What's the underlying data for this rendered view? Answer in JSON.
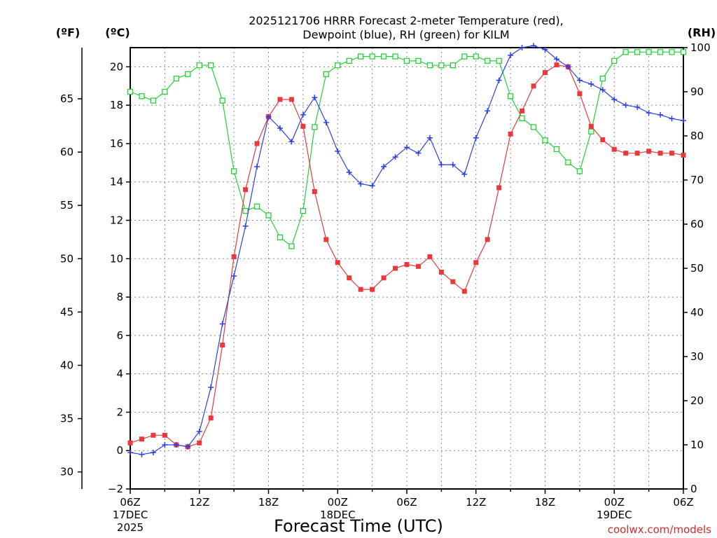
{
  "chart_data": {
    "type": "line",
    "title": "2025121706 HRRR Forecast 2-meter Temperature (red),",
    "subtitle": "Dewpoint (blue), RH (green) for KILM",
    "xlabel": "Forecast Time (UTC)",
    "units": {
      "left_f": "(ºF)",
      "left_c": "(ºC)",
      "right": "(RH)"
    },
    "watermark": "coolwx.com/models",
    "x_ticks": [
      {
        "hour": 0,
        "lines": [
          "06Z",
          "17DEC",
          "2025"
        ]
      },
      {
        "hour": 6,
        "lines": [
          "12Z"
        ]
      },
      {
        "hour": 12,
        "lines": [
          "18Z"
        ]
      },
      {
        "hour": 18,
        "lines": [
          "00Z",
          "18DEC"
        ]
      },
      {
        "hour": 24,
        "lines": [
          "06Z"
        ]
      },
      {
        "hour": 30,
        "lines": [
          "12Z"
        ]
      },
      {
        "hour": 36,
        "lines": [
          "18Z"
        ]
      },
      {
        "hour": 42,
        "lines": [
          "00Z",
          "19DEC"
        ]
      },
      {
        "hour": 48,
        "lines": [
          "06Z"
        ]
      }
    ],
    "xlim_hours": [
      0,
      48
    ],
    "ylim_c": [
      -2,
      21
    ],
    "ylim_rh": [
      0,
      100
    ],
    "y_ticks_c": [
      -2,
      0,
      2,
      4,
      6,
      8,
      10,
      12,
      14,
      16,
      18,
      20
    ],
    "y_ticks_f": [
      30,
      35,
      40,
      45,
      50,
      55,
      60,
      65
    ],
    "y_ticks_rh": [
      0,
      10,
      20,
      30,
      40,
      50,
      60,
      70,
      80,
      90,
      100
    ],
    "hours": [
      0,
      1,
      2,
      3,
      4,
      5,
      6,
      7,
      8,
      9,
      10,
      11,
      12,
      13,
      14,
      15,
      16,
      17,
      18,
      19,
      20,
      21,
      22,
      23,
      24,
      25,
      26,
      27,
      28,
      29,
      30,
      31,
      32,
      33,
      34,
      35,
      36,
      37,
      38,
      39,
      40,
      41,
      42,
      43,
      44,
      45,
      46,
      47,
      48
    ],
    "series": [
      {
        "name": "Temperature",
        "axis": "c",
        "color": "#e8393c",
        "marker": "filled-square",
        "values": [
          0.4,
          0.6,
          0.8,
          0.8,
          0.3,
          0.2,
          0.4,
          1.7,
          5.5,
          10.1,
          13.6,
          16.0,
          17.4,
          18.3,
          18.3,
          16.9,
          13.5,
          11.0,
          9.8,
          9.0,
          8.4,
          8.4,
          9.0,
          9.5,
          9.7,
          9.6,
          10.1,
          9.3,
          8.8,
          8.3,
          9.8,
          11.0,
          13.7,
          16.5,
          17.7,
          19.0,
          19.7,
          20.1,
          20.0,
          18.6,
          16.9,
          16.2,
          15.7,
          15.5,
          15.5,
          15.6,
          15.5,
          15.5,
          15.4
        ]
      },
      {
        "name": "Dewpoint",
        "axis": "c",
        "color": "#2c3ee6",
        "marker": "plus",
        "values": [
          -0.1,
          -0.2,
          -0.1,
          0.3,
          0.3,
          0.2,
          1.0,
          3.3,
          6.6,
          9.1,
          11.7,
          14.8,
          17.4,
          16.8,
          16.1,
          17.5,
          18.4,
          17.1,
          15.6,
          14.5,
          13.9,
          13.8,
          14.8,
          15.3,
          15.8,
          15.5,
          16.3,
          14.9,
          14.9,
          14.4,
          16.3,
          17.7,
          19.3,
          20.6,
          21.0,
          21.1,
          20.9,
          20.4,
          20.0,
          19.3,
          19.1,
          18.8,
          18.3,
          18.0,
          17.9,
          17.6,
          17.5,
          17.3,
          17.2
        ]
      },
      {
        "name": "RH",
        "axis": "rh",
        "color": "#23d136",
        "marker": "open-square",
        "values": [
          90,
          89,
          88,
          90,
          93,
          94,
          96,
          96,
          88,
          72,
          63,
          64,
          62,
          57,
          55,
          63,
          82,
          94,
          96,
          97,
          98,
          98,
          98,
          98,
          97,
          97,
          96,
          96,
          96,
          98,
          98,
          97,
          97,
          89,
          84,
          82,
          79,
          77,
          74,
          72,
          81,
          93,
          97,
          99,
          99,
          99,
          99,
          99,
          99
        ]
      }
    ]
  }
}
